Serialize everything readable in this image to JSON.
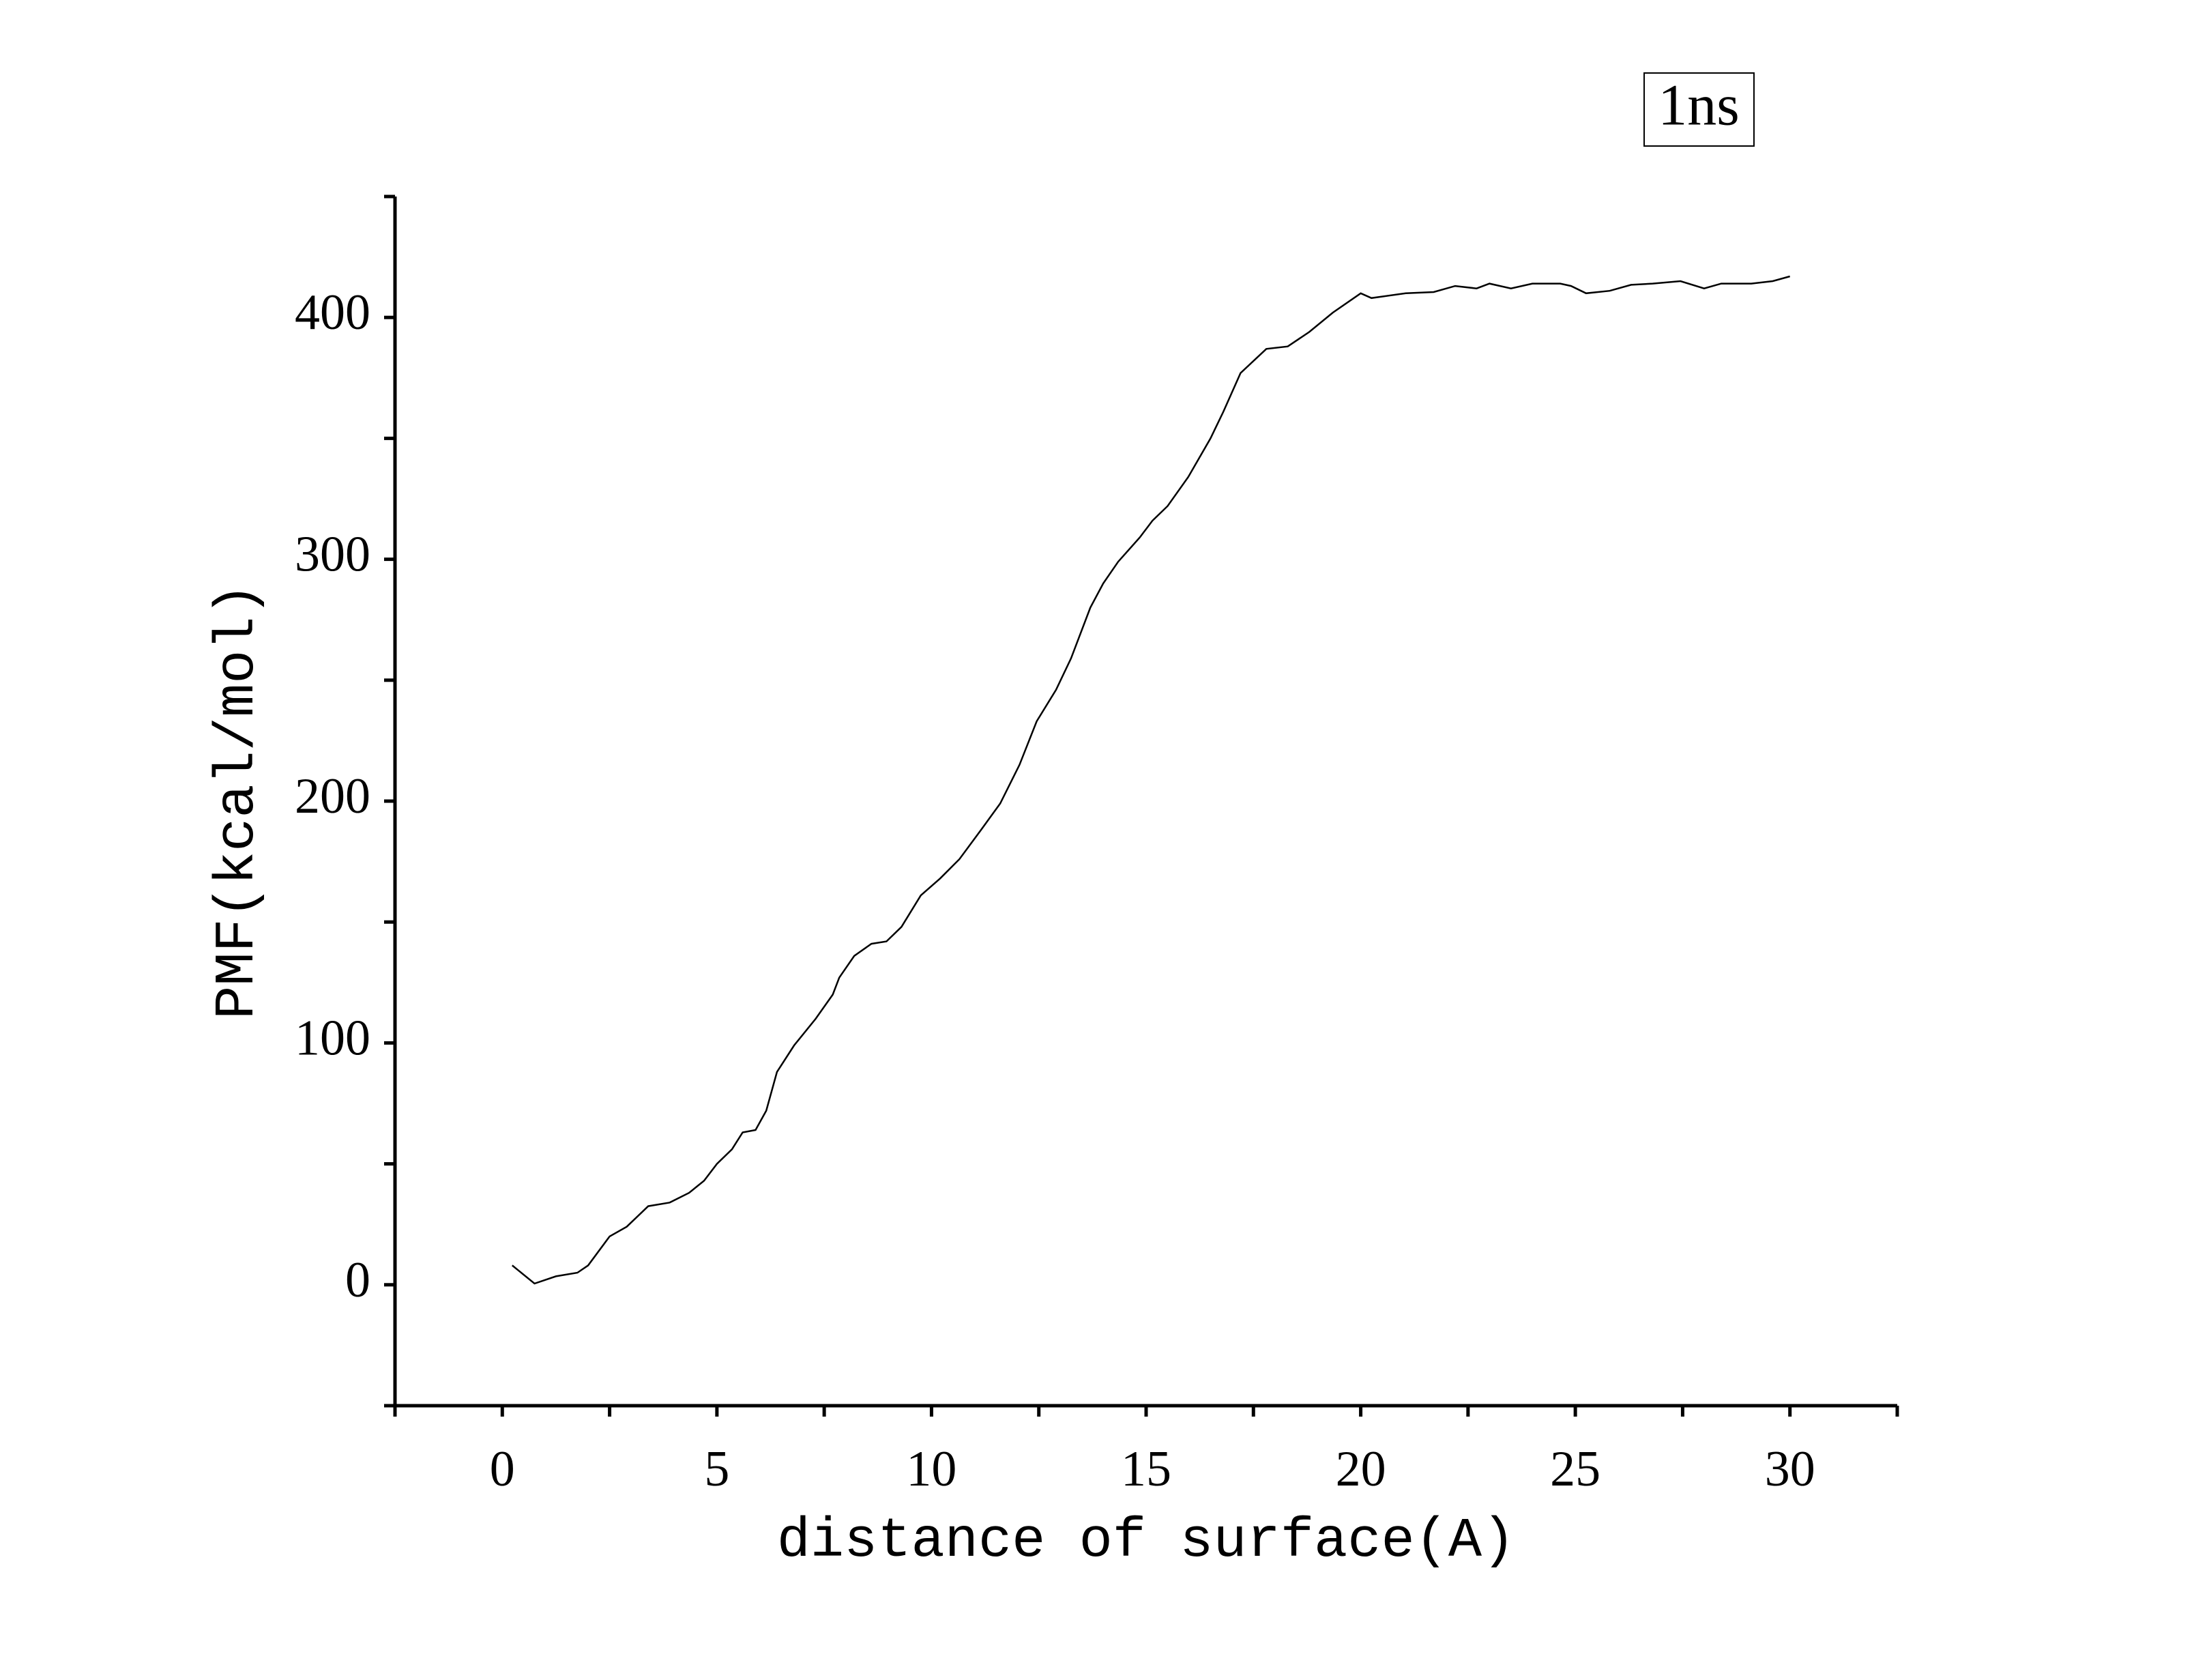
{
  "chart_data": {
    "type": "line",
    "x_label": "distance of surface(A)",
    "y_label": "PMF(kcal/mol)",
    "xlim": [
      -2.5,
      32.5
    ],
    "xticks": [
      0,
      5,
      10,
      15,
      20,
      25,
      30
    ],
    "xminorticks": [
      -2.5,
      2.5,
      7.5,
      12.5,
      17.5,
      22.5,
      27.5,
      32.5
    ],
    "ylim": [
      -50,
      450
    ],
    "yticks": [
      0,
      100,
      200,
      300,
      400
    ],
    "yminorticks": [
      -50,
      50,
      150,
      250,
      350,
      450
    ],
    "grid": false,
    "legend": "top-right",
    "x": [
      0.23,
      0.75,
      1.25,
      1.75,
      2.0,
      2.5,
      2.9,
      3.4,
      3.9,
      4.35,
      4.7,
      5.0,
      5.35,
      5.6,
      5.9,
      6.15,
      6.4,
      6.8,
      7.3,
      7.7,
      7.85,
      8.2,
      8.6,
      8.95,
      9.3,
      9.75,
      10.2,
      10.65,
      11.15,
      11.6,
      12.05,
      12.45,
      12.9,
      13.25,
      13.7,
      14.0,
      14.35,
      14.85,
      15.15,
      15.5,
      15.98,
      16.5,
      16.8,
      17.2,
      17.8,
      18.3,
      18.8,
      19.35,
      20.0,
      20.25,
      21.05,
      21.7,
      22.2,
      22.7,
      23.0,
      23.5,
      24.0,
      24.65,
      24.9,
      25.25,
      25.8,
      26.3,
      26.8,
      27.45,
      28.0,
      28.4,
      29.1,
      29.6,
      30.0
    ],
    "series": [
      {
        "name": "1ns",
        "color": "#000000",
        "values": [
          8,
          0.5,
          3.5,
          5,
          8,
          20,
          24,
          32.5,
          34,
          38,
          43,
          50,
          56,
          63,
          64,
          72,
          88,
          99,
          110,
          120,
          127,
          136,
          141,
          142,
          148,
          161,
          168,
          176,
          188,
          199,
          215,
          233,
          246,
          259,
          280,
          290,
          299,
          309,
          316,
          322,
          334,
          350,
          361,
          377,
          387,
          388,
          394,
          402,
          410,
          408,
          410,
          410.5,
          413,
          412,
          414,
          412,
          414,
          414,
          413,
          410,
          411,
          413.5,
          414,
          415,
          412,
          414,
          414,
          415,
          417
        ]
      }
    ]
  }
}
